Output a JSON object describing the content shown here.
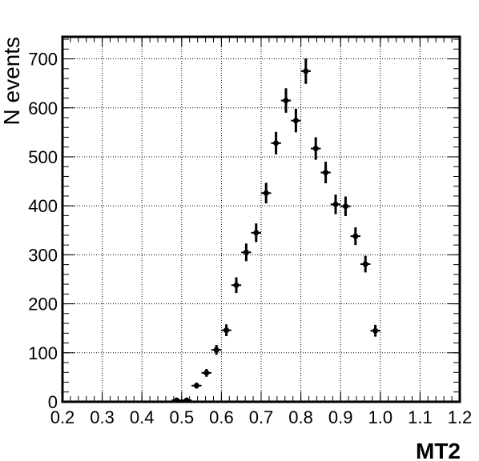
{
  "chart_data": {
    "type": "scatter",
    "xlabel": "MT2",
    "ylabel": "N events",
    "xlim": [
      0.2,
      1.2
    ],
    "ylim": [
      0,
      745
    ],
    "x_ticks": [
      "0.2",
      "0.3",
      "0.4",
      "0.5",
      "0.6",
      "0.7",
      "0.8",
      "0.9",
      "1.0",
      "1.1",
      "1.2"
    ],
    "y_ticks": [
      "0",
      "100",
      "200",
      "300",
      "400",
      "500",
      "600",
      "700"
    ],
    "grid": true,
    "bin_width": 0.025,
    "points": [
      {
        "x": 0.4875,
        "y": 3,
        "err": 2
      },
      {
        "x": 0.5125,
        "y": 3,
        "err": 2
      },
      {
        "x": 0.5375,
        "y": 33,
        "err": 6
      },
      {
        "x": 0.5625,
        "y": 59,
        "err": 8
      },
      {
        "x": 0.5875,
        "y": 106,
        "err": 10
      },
      {
        "x": 0.6125,
        "y": 146,
        "err": 12
      },
      {
        "x": 0.6375,
        "y": 238,
        "err": 16
      },
      {
        "x": 0.6625,
        "y": 305,
        "err": 18
      },
      {
        "x": 0.6875,
        "y": 345,
        "err": 19
      },
      {
        "x": 0.7125,
        "y": 426,
        "err": 21
      },
      {
        "x": 0.7375,
        "y": 528,
        "err": 23
      },
      {
        "x": 0.7625,
        "y": 615,
        "err": 25
      },
      {
        "x": 0.7875,
        "y": 574,
        "err": 24
      },
      {
        "x": 0.8125,
        "y": 675,
        "err": 26
      },
      {
        "x": 0.8375,
        "y": 517,
        "err": 23
      },
      {
        "x": 0.8625,
        "y": 468,
        "err": 22
      },
      {
        "x": 0.8875,
        "y": 403,
        "err": 20
      },
      {
        "x": 0.9125,
        "y": 399,
        "err": 20
      },
      {
        "x": 0.9375,
        "y": 338,
        "err": 18
      },
      {
        "x": 0.9625,
        "y": 281,
        "err": 17
      },
      {
        "x": 0.9875,
        "y": 145,
        "err": 12
      }
    ]
  }
}
